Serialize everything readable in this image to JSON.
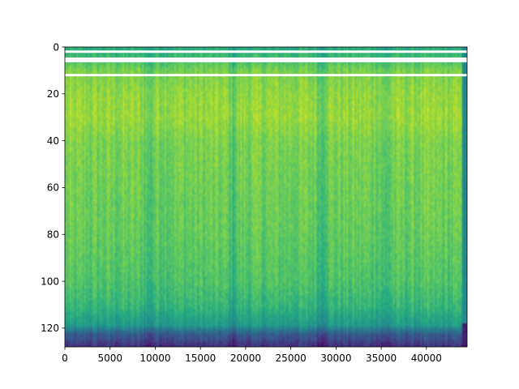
{
  "chart_data": {
    "type": "heatmap",
    "title": "",
    "xlabel": "",
    "ylabel": "",
    "colormap": "viridis",
    "xlim": [
      0,
      44500
    ],
    "ylim": [
      128,
      0
    ],
    "x_ticks": [
      0,
      5000,
      10000,
      15000,
      20000,
      25000,
      30000,
      35000,
      40000
    ],
    "y_ticks": [
      0,
      20,
      40,
      60,
      80,
      100,
      120
    ],
    "grid": false,
    "legend": "none",
    "missing_rows": [
      2,
      5,
      6,
      12
    ],
    "dark_columns": [
      9200,
      18500,
      28300,
      35500
    ],
    "right_edge_band": [
      43900,
      44500
    ],
    "bottom_band_rows": [
      120,
      128
    ],
    "row_profile": [
      {
        "row": 0,
        "level": 0.62
      },
      {
        "row": 10,
        "level": 0.8
      },
      {
        "row": 20,
        "level": 0.84
      },
      {
        "row": 30,
        "level": 0.85
      },
      {
        "row": 40,
        "level": 0.8
      },
      {
        "row": 60,
        "level": 0.78
      },
      {
        "row": 80,
        "level": 0.76
      },
      {
        "row": 100,
        "level": 0.72
      },
      {
        "row": 110,
        "level": 0.66
      },
      {
        "row": 118,
        "level": 0.55
      },
      {
        "row": 122,
        "level": 0.3
      },
      {
        "row": 128,
        "level": 0.12
      }
    ]
  }
}
